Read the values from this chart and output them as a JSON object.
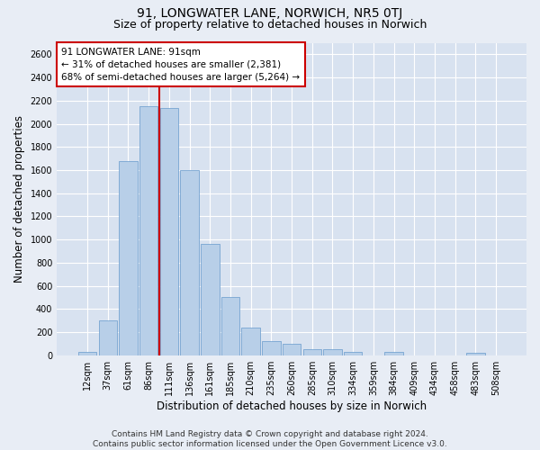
{
  "title_line1": "91, LONGWATER LANE, NORWICH, NR5 0TJ",
  "title_line2": "Size of property relative to detached houses in Norwich",
  "xlabel": "Distribution of detached houses by size in Norwich",
  "ylabel": "Number of detached properties",
  "footnote": "Contains HM Land Registry data © Crown copyright and database right 2024.\nContains public sector information licensed under the Open Government Licence v3.0.",
  "bar_labels": [
    "12sqm",
    "37sqm",
    "61sqm",
    "86sqm",
    "111sqm",
    "136sqm",
    "161sqm",
    "185sqm",
    "210sqm",
    "235sqm",
    "260sqm",
    "285sqm",
    "310sqm",
    "334sqm",
    "359sqm",
    "384sqm",
    "409sqm",
    "434sqm",
    "458sqm",
    "483sqm",
    "508sqm"
  ],
  "bar_values": [
    25,
    300,
    1680,
    2150,
    2140,
    1600,
    960,
    505,
    240,
    120,
    100,
    50,
    50,
    30,
    0,
    30,
    0,
    0,
    0,
    20,
    0
  ],
  "bar_color": "#b8cfe8",
  "bar_edge_color": "#6699cc",
  "vline_color": "#cc0000",
  "vline_x": 3.5,
  "annotation_title": "91 LONGWATER LANE: 91sqm",
  "annotation_line1": "← 31% of detached houses are smaller (2,381)",
  "annotation_line2": "68% of semi-detached houses are larger (5,264) →",
  "annotation_box_color": "#cc0000",
  "ylim": [
    0,
    2700
  ],
  "yticks": [
    0,
    200,
    400,
    600,
    800,
    1000,
    1200,
    1400,
    1600,
    1800,
    2000,
    2200,
    2400,
    2600
  ],
  "bg_color": "#e8edf5",
  "plot_bg_color": "#d8e2f0",
  "grid_color": "#ffffff",
  "title_fontsize": 10,
  "subtitle_fontsize": 9,
  "axis_label_fontsize": 8.5,
  "tick_fontsize": 7,
  "annotation_fontsize": 7.5,
  "footnote_fontsize": 6.5
}
